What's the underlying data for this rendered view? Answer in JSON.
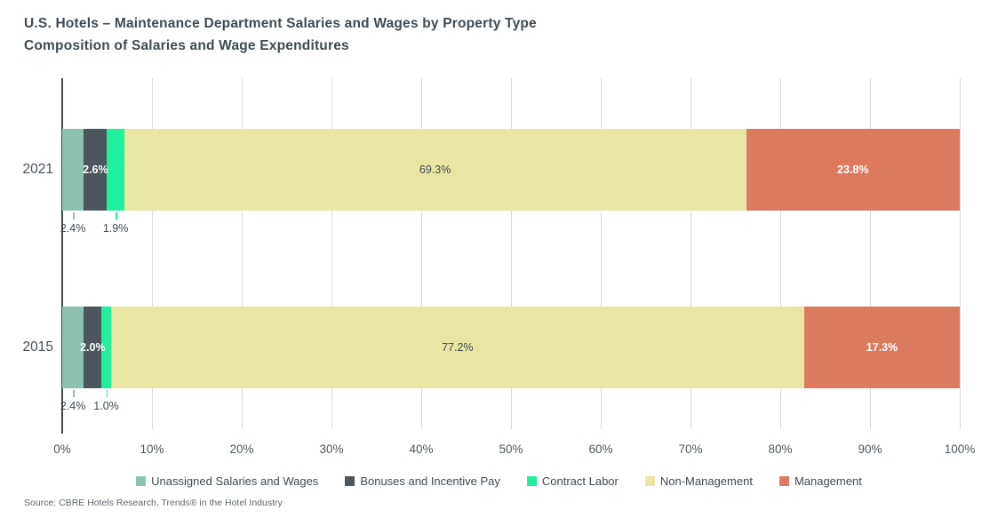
{
  "header": {
    "title_line1": "U.S. Hotels – Maintenance Department Salaries and Wages by Property Type",
    "title_line2": "Composition of Salaries and Wage Expenditures"
  },
  "footer": {
    "source": "Source: CBRE Hotels Research, Trends® in the Hotel Industry"
  },
  "colors": {
    "title_text": "#3d4b52",
    "axis_text": "#4d585e",
    "gridline": "#dadada",
    "axis_line": "#3e4a51",
    "inside_label_dark": "#3e4b52",
    "inside_label_light": "#ffffff"
  },
  "chart_data": {
    "type": "bar",
    "orientation": "horizontal-stacked",
    "title": "U.S. Hotels – Maintenance Department Salaries and Wages by Property Type",
    "subtitle": "Composition of Salaries and Wage Expenditures",
    "categories": [
      "2021",
      "2015"
    ],
    "series": [
      {
        "name": "Unassigned Salaries and Wages",
        "color": "#8cc3b0",
        "values": [
          2.4,
          2.4
        ],
        "label_position": "below"
      },
      {
        "name": "Bonuses and Incentive Pay",
        "color": "#4b575d",
        "values": [
          2.6,
          2.0
        ],
        "label_position": "inside",
        "label_color": "#ffffff"
      },
      {
        "name": "Contract Labor",
        "color": "#1ef09b",
        "values": [
          1.9,
          1.0
        ],
        "label_position": "below"
      },
      {
        "name": "Non-Management",
        "color": "#e9e5a3",
        "values": [
          69.3,
          77.2
        ],
        "label_position": "inside",
        "label_color": "#3e4b52"
      },
      {
        "name": "Management",
        "color": "#dc7a5f",
        "values": [
          23.8,
          17.3
        ],
        "label_position": "inside",
        "label_color": "#ffffff"
      }
    ],
    "x_ticks": [
      "0%",
      "10%",
      "20%",
      "30%",
      "40%",
      "50%",
      "60%",
      "70%",
      "80%",
      "90%",
      "100%"
    ],
    "xlim": [
      0,
      100
    ],
    "grid": true,
    "legend_position": "bottom"
  }
}
